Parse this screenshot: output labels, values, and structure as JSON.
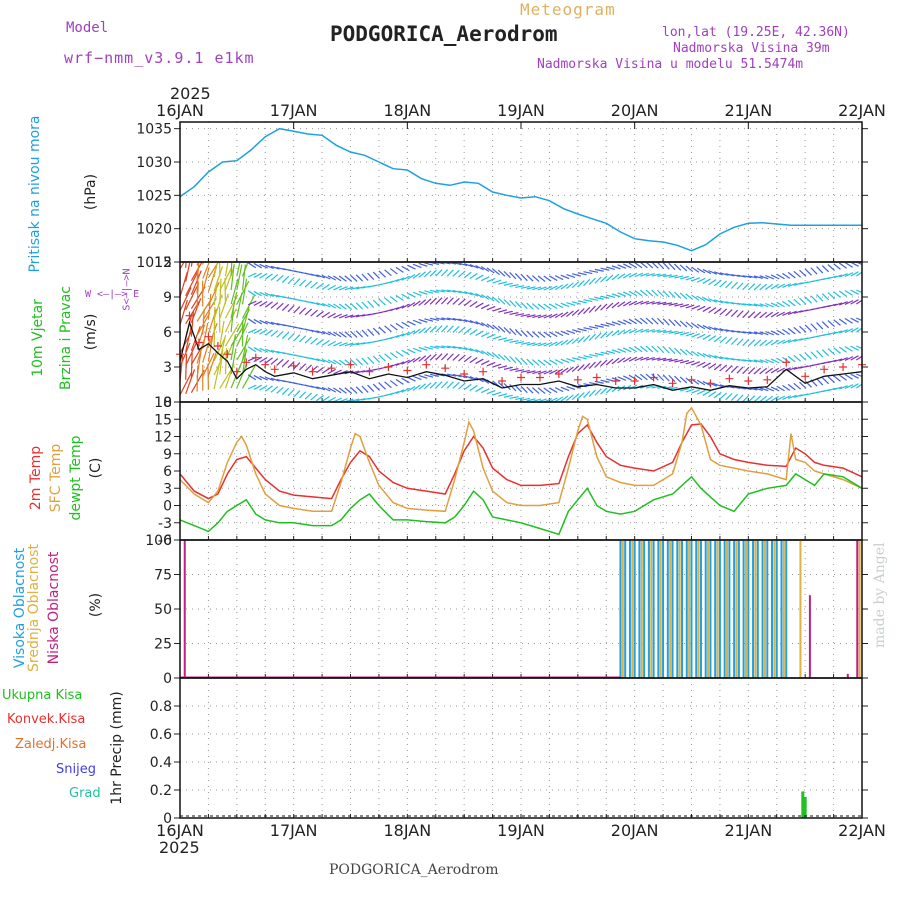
{
  "header": {
    "model_label": "Model",
    "model_name": "wrf−nmm_v3.9.1  e1km",
    "title": "PODGORICA_Aerodrom",
    "subtitle": "Meteogram",
    "lonlat": "lon,lat (19.25E, 42.36N)",
    "altitude": "Nadmorska Visina 39m",
    "model_altitude": "Nadmorska Visina u modelu 51.5474m",
    "year_top": "2025",
    "year_bottom": "2025",
    "footer": "PODGORICA_Aerodrom",
    "credit": "made by Angel"
  },
  "colors": {
    "pressure": "#1ea0e0",
    "temp2m": "#e83030",
    "sfc": "#e0a040",
    "dewpt": "#20c020",
    "high_cloud": "#20a0e0",
    "mid_cloud": "#e0b040",
    "low_cloud": "#c02080",
    "precip_total": "#20c020",
    "purple": "#a040c0"
  },
  "x_axis": {
    "labels": [
      "16JAN",
      "17JAN",
      "18JAN",
      "19JAN",
      "20JAN",
      "21JAN",
      "22JAN"
    ],
    "range_hours": [
      0,
      144
    ]
  },
  "chart_data": [
    {
      "type": "line",
      "panel": "pressure",
      "ylabel_main": "Pritisak na nivou mora",
      "ylabel_unit": "(hPa)",
      "ylim": [
        1015,
        1036
      ],
      "yticks": [
        1015,
        1020,
        1025,
        1030,
        1035
      ],
      "grid": true,
      "series": [
        {
          "x": [
            0,
            3,
            6,
            9,
            12,
            15,
            18,
            21,
            24,
            27,
            30,
            33,
            36,
            39,
            42,
            45,
            48,
            51,
            54,
            57,
            60,
            63,
            66,
            69,
            72,
            75,
            78,
            81,
            84,
            87,
            90,
            93,
            96,
            99,
            102,
            105,
            108,
            111,
            114,
            117,
            120,
            123,
            126,
            129,
            132,
            135,
            138,
            141,
            144
          ],
          "y": [
            1024.8,
            1026.3,
            1028.5,
            1030.0,
            1030.2,
            1031.8,
            1033.8,
            1035.0,
            1034.6,
            1034.2,
            1034.0,
            1032.5,
            1031.5,
            1031.0,
            1030.0,
            1029.0,
            1028.8,
            1027.5,
            1026.8,
            1026.5,
            1027.0,
            1026.8,
            1025.5,
            1025.0,
            1024.6,
            1024.8,
            1024.2,
            1023.0,
            1022.2,
            1021.5,
            1020.8,
            1019.5,
            1018.5,
            1018.2,
            1018.0,
            1017.5,
            1016.7,
            1017.6,
            1019.2,
            1020.2,
            1020.8,
            1020.9,
            1020.7,
            1020.5,
            1020.5,
            1020.5,
            1020.5,
            1020.5,
            1020.5
          ]
        }
      ]
    },
    {
      "type": "line",
      "panel": "wind",
      "ylabel_main": "10m Vjetar",
      "ylabel_main2": "Brzina i Pravac",
      "ylabel_unit": "(m/s)",
      "compass": "W  <–|–>  E",
      "compass_v": "S<–|–>N",
      "ylim": [
        0,
        12
      ],
      "yticks": [
        0,
        3,
        6,
        9,
        12
      ],
      "grid": true,
      "series": [
        {
          "x": [
            0,
            2,
            4,
            6,
            8,
            10,
            12,
            14,
            16,
            18,
            20,
            24,
            28,
            32,
            36,
            40,
            44,
            48,
            52,
            56,
            60,
            64,
            68,
            72,
            76,
            80,
            84,
            88,
            92,
            96,
            100,
            104,
            108,
            112,
            116,
            120,
            124,
            128,
            132,
            136,
            140,
            144
          ],
          "y": [
            3.5,
            6.8,
            4.5,
            5.0,
            4.2,
            3.5,
            2.0,
            2.8,
            3.2,
            2.6,
            2.2,
            2.5,
            2.0,
            2.3,
            2.6,
            2.0,
            2.4,
            2.1,
            2.6,
            2.3,
            1.8,
            2.0,
            1.2,
            1.5,
            1.5,
            1.8,
            1.3,
            1.5,
            1.2,
            1.2,
            1.5,
            1.0,
            1.3,
            1.0,
            1.4,
            1.2,
            1.3,
            2.8,
            1.6,
            2.2,
            2.4,
            2.6
          ]
        }
      ]
    },
    {
      "type": "line",
      "panel": "temperature",
      "ylabel_main": "2m Temp",
      "ylabel_main2": "SFC Temp",
      "ylabel_main3": "dewpt Temp",
      "ylabel_unit": "(C)",
      "ylim": [
        -6,
        18
      ],
      "yticks": [
        -6,
        -3,
        0,
        3,
        6,
        9,
        12,
        15,
        18
      ],
      "grid": true,
      "series": [
        {
          "key": "temp2m",
          "x": [
            0,
            3,
            6,
            8,
            10,
            12,
            14,
            16,
            18,
            21,
            24,
            28,
            32,
            34,
            36,
            38,
            40,
            42,
            45,
            48,
            52,
            56,
            58,
            60,
            62,
            64,
            66,
            69,
            72,
            76,
            80,
            82,
            84,
            86,
            88,
            90,
            93,
            96,
            100,
            104,
            106,
            108,
            110,
            112,
            114,
            117,
            120,
            124,
            128,
            130,
            132,
            134,
            136,
            140,
            144
          ],
          "y": [
            5.5,
            2.5,
            1.2,
            2.0,
            5.5,
            8.0,
            8.5,
            6.5,
            4.5,
            2.5,
            1.8,
            1.5,
            1.2,
            4.5,
            7.5,
            9.5,
            8.5,
            6.0,
            4.0,
            3.0,
            2.5,
            2.0,
            5.5,
            9.5,
            12.0,
            10.0,
            6.5,
            4.5,
            3.5,
            3.5,
            3.8,
            8.5,
            12.5,
            14.0,
            11.0,
            8.5,
            7.0,
            6.5,
            6.0,
            7.5,
            11.0,
            14.0,
            14.2,
            12.0,
            9.0,
            8.0,
            7.5,
            7.0,
            6.8,
            10.0,
            9.0,
            7.5,
            7.0,
            6.5,
            5.0
          ]
        },
        {
          "key": "sfc",
          "x": [
            0,
            3,
            6,
            8,
            10,
            12,
            13,
            14,
            16,
            18,
            21,
            24,
            28,
            32,
            34,
            36,
            37,
            38,
            40,
            42,
            45,
            48,
            52,
            56,
            58,
            60,
            61,
            62,
            64,
            66,
            69,
            72,
            76,
            80,
            82,
            84,
            85,
            86,
            88,
            90,
            93,
            96,
            100,
            104,
            106,
            107,
            108,
            110,
            112,
            114,
            117,
            120,
            124,
            128,
            129,
            130,
            132,
            134,
            136,
            140,
            144
          ],
          "y": [
            4.5,
            2.0,
            0.5,
            2.5,
            7.5,
            11.0,
            12.0,
            10.5,
            5.5,
            2.0,
            0.0,
            -0.5,
            -1.0,
            -1.0,
            4.0,
            10.0,
            12.5,
            12.0,
            7.5,
            3.5,
            0.5,
            -0.5,
            -0.8,
            -1.0,
            4.5,
            11.0,
            14.5,
            13.0,
            6.5,
            2.5,
            0.5,
            0.0,
            0.0,
            0.5,
            6.5,
            13.0,
            15.5,
            15.0,
            8.5,
            5.0,
            4.0,
            3.5,
            3.5,
            5.5,
            11.0,
            16.0,
            17.0,
            14.0,
            8.0,
            7.0,
            6.5,
            6.0,
            5.5,
            4.5,
            12.5,
            8.0,
            7.5,
            6.0,
            5.5,
            4.5,
            3.0
          ]
        },
        {
          "key": "dewpt",
          "x": [
            0,
            3,
            6,
            8,
            10,
            12,
            14,
            16,
            18,
            21,
            24,
            28,
            32,
            34,
            36,
            38,
            40,
            42,
            45,
            48,
            52,
            56,
            58,
            60,
            62,
            64,
            66,
            69,
            72,
            76,
            80,
            82,
            84,
            86,
            88,
            90,
            93,
            96,
            100,
            104,
            106,
            108,
            110,
            112,
            114,
            117,
            120,
            124,
            128,
            130,
            132,
            134,
            136,
            140,
            144
          ],
          "y": [
            -2.5,
            -3.5,
            -4.5,
            -3.0,
            -1.0,
            0.0,
            1.0,
            -1.5,
            -2.5,
            -3.0,
            -3.0,
            -3.5,
            -3.5,
            -2.5,
            -0.5,
            1.0,
            2.0,
            0.0,
            -2.5,
            -2.5,
            -2.8,
            -3.0,
            -2.0,
            0.0,
            2.5,
            1.0,
            -2.0,
            -2.5,
            -3.0,
            -4.0,
            -5.0,
            -1.0,
            1.0,
            3.0,
            0.0,
            -1.0,
            -1.5,
            -1.0,
            1.0,
            2.0,
            3.5,
            5.0,
            3.0,
            1.5,
            0.0,
            -1.0,
            2.0,
            3.0,
            3.5,
            5.5,
            4.5,
            3.5,
            5.5,
            5.0,
            3.0
          ]
        }
      ]
    },
    {
      "type": "bar",
      "panel": "clouds",
      "ylabel_main": "Visoka Oblacnost",
      "ylabel_main2": "Srednja Oblacnost",
      "ylabel_main3": "Niska Oblacnost",
      "ylabel_unit": "(%)",
      "ylim": [
        0,
        100
      ],
      "yticks": [
        0,
        25,
        50,
        75,
        100
      ],
      "grid": true,
      "series": [
        {
          "key": "low_cloud",
          "x": [
            1,
            133,
            141,
            143
          ],
          "values": [
            100,
            60,
            3,
            100
          ]
        },
        {
          "key": "high_cloud",
          "x": [
            93,
            94,
            95,
            96,
            97,
            98,
            99,
            100,
            101,
            102,
            103,
            104,
            105,
            106,
            107,
            108,
            109,
            110,
            111,
            112,
            113,
            114,
            115,
            116,
            117,
            118,
            119,
            120,
            121,
            122,
            123,
            124,
            125,
            126,
            127,
            128
          ],
          "values": [
            100,
            100,
            100,
            100,
            100,
            100,
            100,
            100,
            100,
            100,
            100,
            100,
            100,
            100,
            100,
            100,
            100,
            100,
            100,
            100,
            100,
            100,
            100,
            100,
            100,
            100,
            100,
            100,
            100,
            100,
            100,
            100,
            100,
            100,
            100,
            100
          ]
        },
        {
          "key": "mid_cloud",
          "x": [
            93.5,
            95.5,
            97.5,
            99.5,
            101.5,
            103.5,
            105.5,
            107.5,
            109.5,
            111.5,
            113.5,
            115.5,
            117.5,
            119.5,
            121.5,
            123.5,
            125.5,
            127.5,
            131,
            143.5
          ],
          "values": [
            100,
            100,
            100,
            100,
            100,
            100,
            100,
            100,
            100,
            100,
            100,
            100,
            100,
            100,
            100,
            100,
            100,
            100,
            100,
            100
          ]
        }
      ]
    },
    {
      "type": "bar",
      "panel": "precip",
      "ylabel_unit": "1hr Precip (mm)",
      "legend": [
        "Ukupna Kisa",
        "Konvek.Kisa",
        "Zaledj.Kisa",
        "Snijeg",
        "Grad"
      ],
      "legend_colors": [
        "#20c020",
        "#e83030",
        "#e07030",
        "#4040e0",
        "#20c0a0"
      ],
      "ylim": [
        0,
        1.0
      ],
      "yticks": [
        0,
        0.2,
        0.4,
        0.6,
        0.8
      ],
      "ytick_labels": [
        "0",
        "0.2",
        "0.4",
        "0.6",
        "0.8"
      ],
      "grid": true,
      "series": [
        {
          "key": "precip_total",
          "x": [
            131.5,
            132.0
          ],
          "values": [
            0.19,
            0.15
          ]
        }
      ]
    }
  ]
}
